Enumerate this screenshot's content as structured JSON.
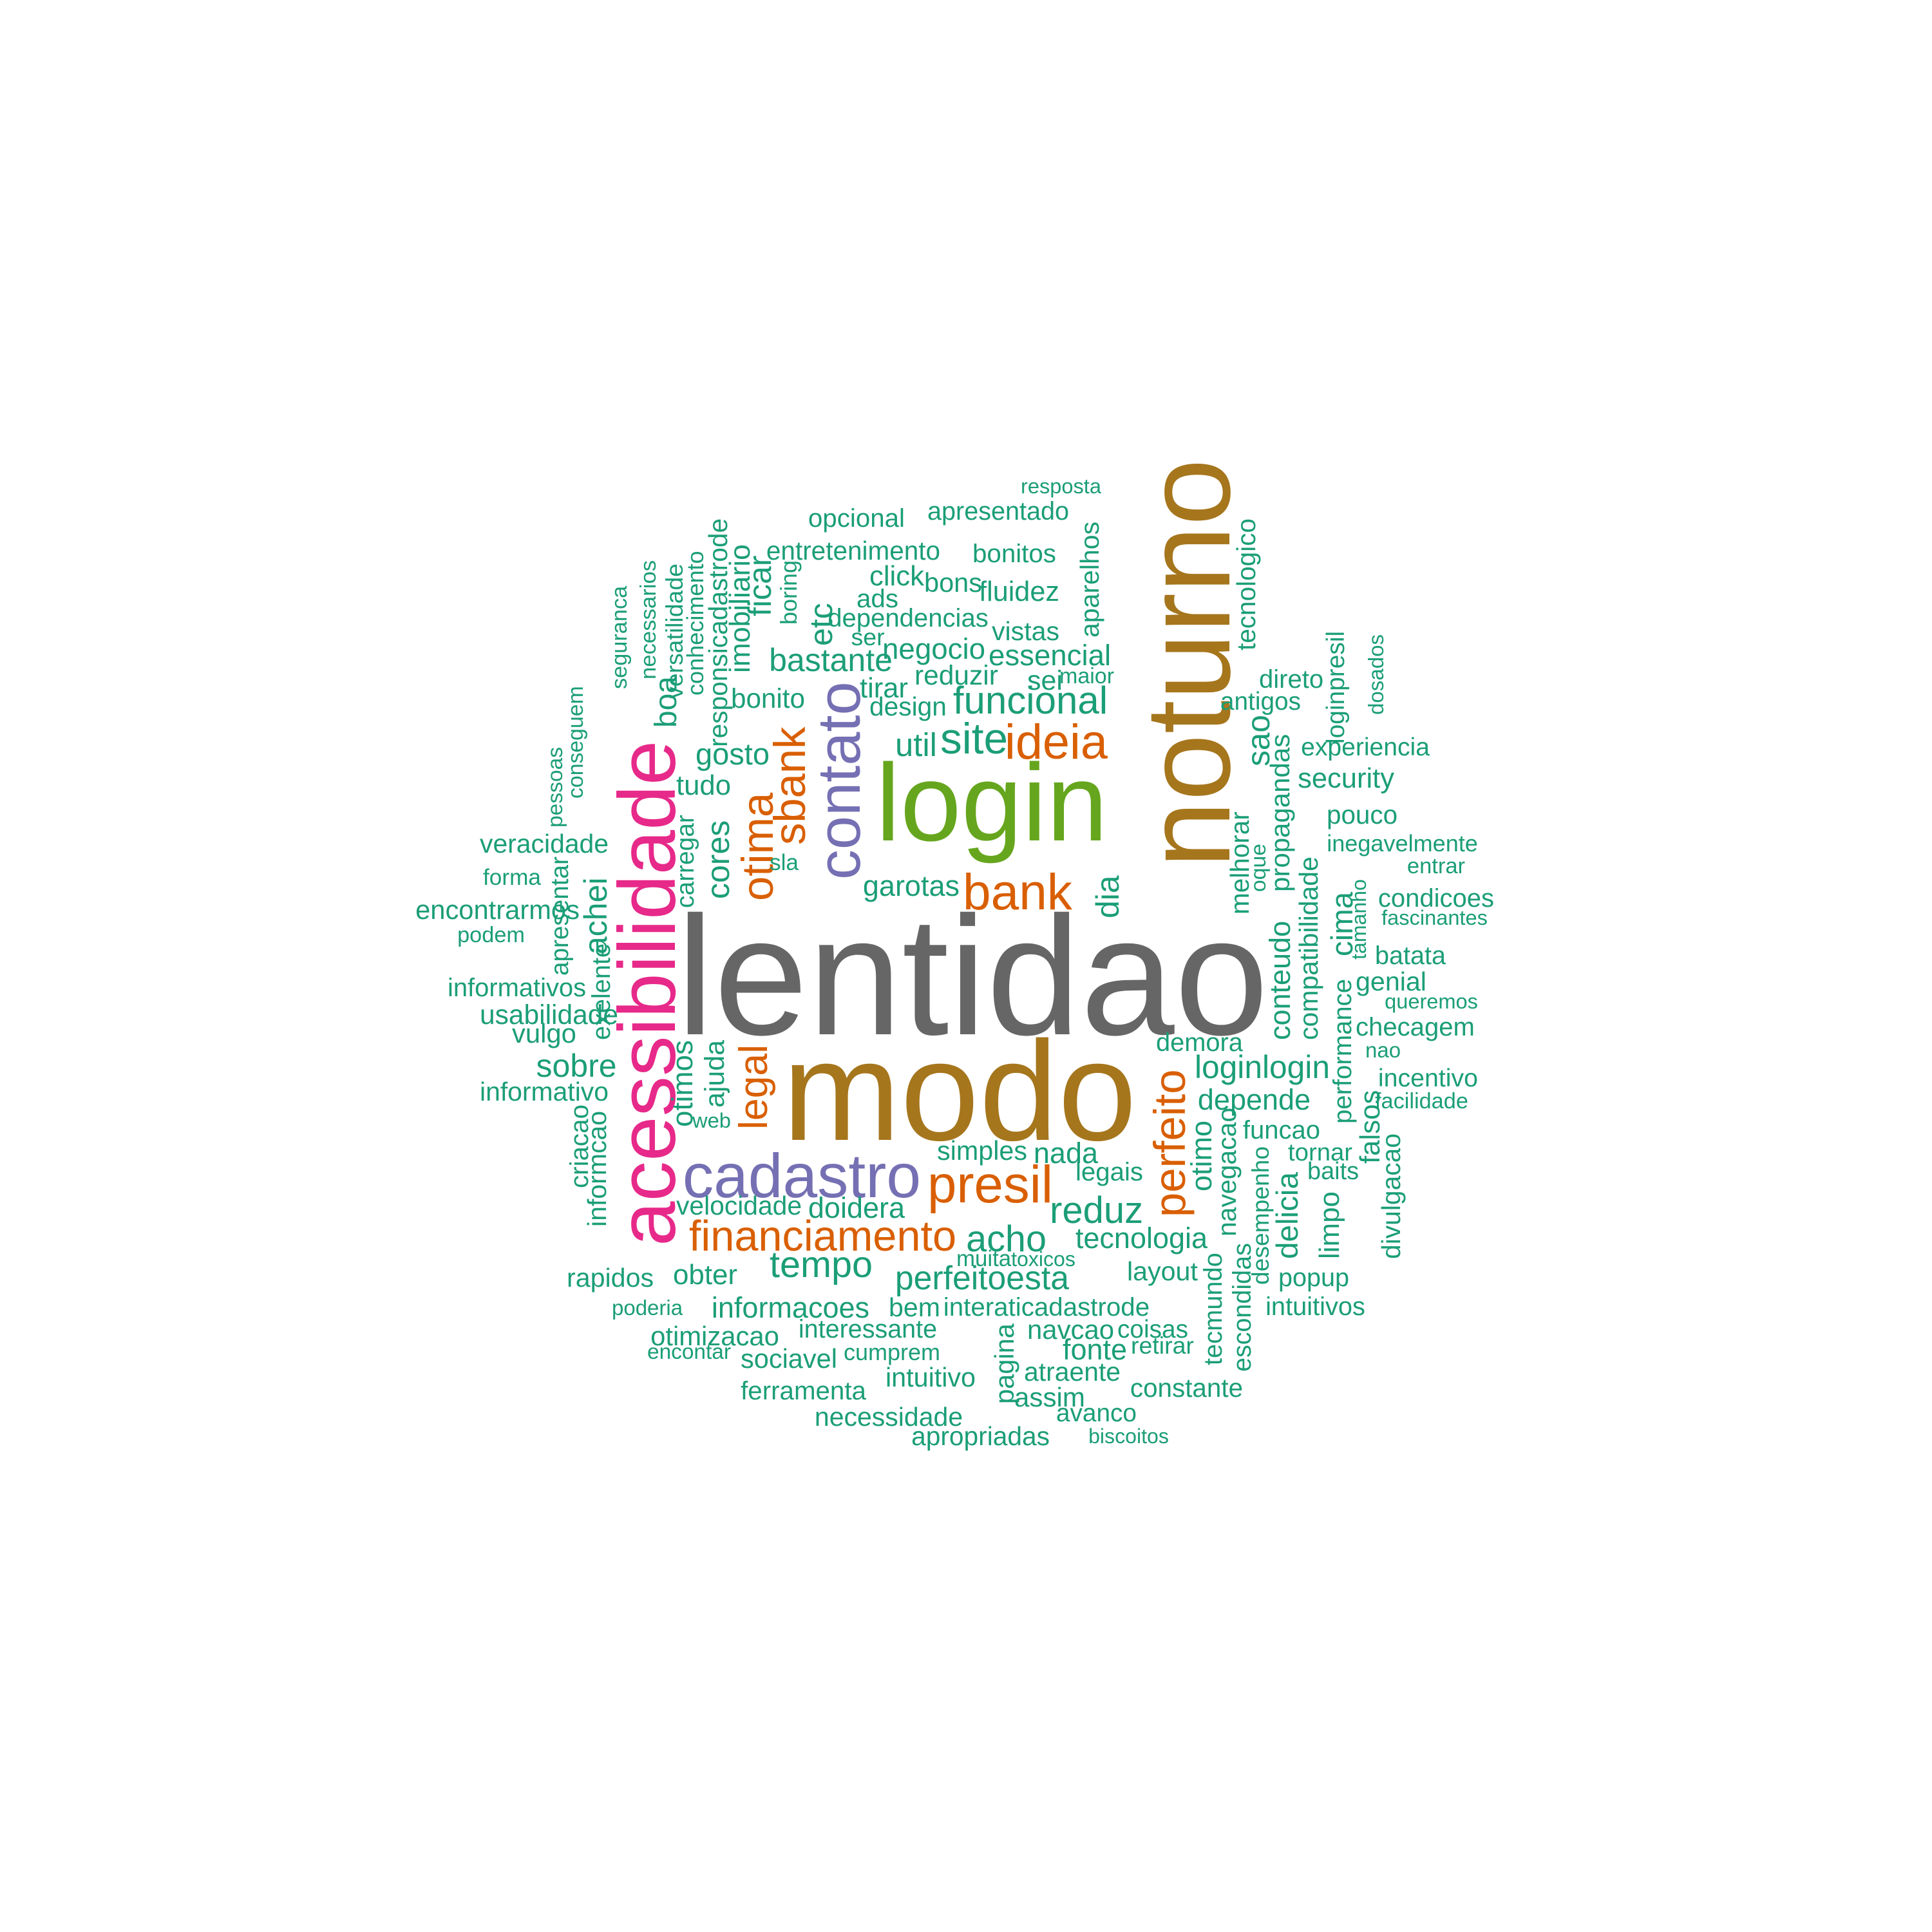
{
  "colors": {
    "gray": "#666666",
    "gold": "#A6761D",
    "green": "#66A61E",
    "pink": "#E7298A",
    "purple": "#7570B3",
    "orange": "#D95F02",
    "teal": "#1B9E77"
  },
  "words": [
    {
      "text": "lentidao",
      "color": "gray"
    },
    {
      "text": "modo",
      "color": "gold"
    },
    {
      "text": "noturno",
      "color": "gold"
    },
    {
      "text": "login",
      "color": "green"
    },
    {
      "text": "acessibilidade",
      "color": "pink"
    },
    {
      "text": "contato",
      "color": "purple"
    },
    {
      "text": "cadastro",
      "color": "purple"
    },
    {
      "text": "presil",
      "color": "orange"
    },
    {
      "text": "bank",
      "color": "orange"
    },
    {
      "text": "ideia",
      "color": "orange"
    },
    {
      "text": "sbank",
      "color": "orange"
    },
    {
      "text": "otima",
      "color": "orange"
    },
    {
      "text": "perfeito",
      "color": "orange"
    },
    {
      "text": "legal",
      "color": "orange"
    },
    {
      "text": "financiamento",
      "color": "orange"
    },
    {
      "text": "site",
      "color": "teal"
    },
    {
      "text": "funcional",
      "color": "teal"
    },
    {
      "text": "reduz",
      "color": "teal"
    },
    {
      "text": "acho",
      "color": "teal"
    },
    {
      "text": "tempo",
      "color": "teal"
    },
    {
      "text": "perfeitoesta",
      "color": "teal"
    },
    {
      "text": "tecnologia",
      "color": "teal"
    },
    {
      "text": "loginlogin",
      "color": "teal"
    },
    {
      "text": "depende",
      "color": "teal"
    },
    {
      "text": "doidera",
      "color": "teal"
    },
    {
      "text": "informacoes",
      "color": "teal"
    },
    {
      "text": "essencial",
      "color": "teal"
    },
    {
      "text": "negocio",
      "color": "teal"
    },
    {
      "text": "util",
      "color": "teal"
    },
    {
      "text": "gosto",
      "color": "teal"
    },
    {
      "text": "garotas",
      "color": "teal"
    },
    {
      "text": "cores",
      "color": "teal"
    },
    {
      "text": "conteudo",
      "color": "teal"
    },
    {
      "text": "compatibilidade",
      "color": "teal"
    },
    {
      "text": "propagandas",
      "color": "teal"
    },
    {
      "text": "veracidade",
      "color": "teal"
    },
    {
      "text": "informativos",
      "color": "teal"
    },
    {
      "text": "informativo",
      "color": "teal"
    },
    {
      "text": "opcional",
      "color": "teal"
    },
    {
      "text": "apresentado",
      "color": "teal"
    },
    {
      "text": "resposta",
      "color": "teal"
    },
    {
      "text": "entretenimento",
      "color": "teal"
    },
    {
      "text": "bonitos",
      "color": "teal"
    },
    {
      "text": "click",
      "color": "teal"
    },
    {
      "text": "bons",
      "color": "teal"
    },
    {
      "text": "fluidez",
      "color": "teal"
    },
    {
      "text": "ads",
      "color": "teal"
    },
    {
      "text": "dependencias",
      "color": "teal"
    },
    {
      "text": "ser",
      "color": "teal"
    },
    {
      "text": "vistas",
      "color": "teal"
    },
    {
      "text": "bastante",
      "color": "teal"
    },
    {
      "text": "reduzir",
      "color": "teal"
    },
    {
      "text": "sei",
      "color": "teal"
    },
    {
      "text": "maior",
      "color": "teal"
    },
    {
      "text": "tirar",
      "color": "teal"
    },
    {
      "text": "design",
      "color": "teal"
    },
    {
      "text": "bonito",
      "color": "teal"
    },
    {
      "text": "tudo",
      "color": "teal"
    },
    {
      "text": "carregar",
      "color": "teal"
    },
    {
      "text": "sla",
      "color": "teal"
    },
    {
      "text": "aparelhos",
      "color": "teal"
    },
    {
      "text": "etc",
      "color": "teal"
    },
    {
      "text": "boring",
      "color": "teal"
    },
    {
      "text": "ficar",
      "color": "teal"
    },
    {
      "text": "imobiliario",
      "color": "teal"
    },
    {
      "text": "responsicadastrode",
      "color": "teal"
    },
    {
      "text": "conhecimento",
      "color": "teal"
    },
    {
      "text": "versatilidade",
      "color": "teal"
    },
    {
      "text": "boa",
      "color": "teal"
    },
    {
      "text": "necessarios",
      "color": "teal"
    },
    {
      "text": "seguranca",
      "color": "teal"
    },
    {
      "text": "conseguem",
      "color": "teal"
    },
    {
      "text": "pessoas",
      "color": "teal"
    },
    {
      "text": "forma",
      "color": "teal"
    },
    {
      "text": "encontrarmos",
      "color": "teal"
    },
    {
      "text": "podem",
      "color": "teal"
    },
    {
      "text": "apresentar",
      "color": "teal"
    },
    {
      "text": "achei",
      "color": "teal"
    },
    {
      "text": "exelente",
      "color": "teal"
    },
    {
      "text": "usabilidade",
      "color": "teal"
    },
    {
      "text": "vulgo",
      "color": "teal"
    },
    {
      "text": "sobre",
      "color": "teal"
    },
    {
      "text": "criacao",
      "color": "teal"
    },
    {
      "text": "informcao",
      "color": "teal"
    },
    {
      "text": "otimos",
      "color": "teal"
    },
    {
      "text": "ajuda",
      "color": "teal"
    },
    {
      "text": "web",
      "color": "teal"
    },
    {
      "text": "velocidade",
      "color": "teal"
    },
    {
      "text": "rapidos",
      "color": "teal"
    },
    {
      "text": "obter",
      "color": "teal"
    },
    {
      "text": "poderia",
      "color": "teal"
    },
    {
      "text": "otimizacao",
      "color": "teal"
    },
    {
      "text": "encontar",
      "color": "teal"
    },
    {
      "text": "interessante",
      "color": "teal"
    },
    {
      "text": "sociavel",
      "color": "teal"
    },
    {
      "text": "cumprem",
      "color": "teal"
    },
    {
      "text": "ferramenta",
      "color": "teal"
    },
    {
      "text": "intuitivo",
      "color": "teal"
    },
    {
      "text": "necessidade",
      "color": "teal"
    },
    {
      "text": "apropriadas",
      "color": "teal"
    },
    {
      "text": "bem",
      "color": "teal"
    },
    {
      "text": "interaticadastrode",
      "color": "teal"
    },
    {
      "text": "muita",
      "color": "teal"
    },
    {
      "text": "toxicos",
      "color": "teal"
    },
    {
      "text": "pagina",
      "color": "teal"
    },
    {
      "text": "navcao",
      "color": "teal"
    },
    {
      "text": "coisas",
      "color": "teal"
    },
    {
      "text": "fonte",
      "color": "teal"
    },
    {
      "text": "retirar",
      "color": "teal"
    },
    {
      "text": "atraente",
      "color": "teal"
    },
    {
      "text": "assim",
      "color": "teal"
    },
    {
      "text": "avanco",
      "color": "teal"
    },
    {
      "text": "constante",
      "color": "teal"
    },
    {
      "text": "biscoitos",
      "color": "teal"
    },
    {
      "text": "simples",
      "color": "teal"
    },
    {
      "text": "nada",
      "color": "teal"
    },
    {
      "text": "legais",
      "color": "teal"
    },
    {
      "text": "layout",
      "color": "teal"
    },
    {
      "text": "demora",
      "color": "teal"
    },
    {
      "text": "otimo",
      "color": "teal"
    },
    {
      "text": "navegacao",
      "color": "teal"
    },
    {
      "text": "desempenho",
      "color": "teal"
    },
    {
      "text": "delicia",
      "color": "teal"
    },
    {
      "text": "funcao",
      "color": "teal"
    },
    {
      "text": "tornar",
      "color": "teal"
    },
    {
      "text": "baits",
      "color": "teal"
    },
    {
      "text": "limpo",
      "color": "teal"
    },
    {
      "text": "popup",
      "color": "teal"
    },
    {
      "text": "intuitivos",
      "color": "teal"
    },
    {
      "text": "tecmundo",
      "color": "teal"
    },
    {
      "text": "escondidas",
      "color": "teal"
    },
    {
      "text": "tecnologico",
      "color": "teal"
    },
    {
      "text": "direto",
      "color": "teal"
    },
    {
      "text": "antigos",
      "color": "teal"
    },
    {
      "text": "loginpresil",
      "color": "teal"
    },
    {
      "text": "dosados",
      "color": "teal"
    },
    {
      "text": "sao",
      "color": "teal"
    },
    {
      "text": "experiencia",
      "color": "teal"
    },
    {
      "text": "security",
      "color": "teal"
    },
    {
      "text": "pouco",
      "color": "teal"
    },
    {
      "text": "melhorar",
      "color": "teal"
    },
    {
      "text": "oque",
      "color": "teal"
    },
    {
      "text": "inegavelmente",
      "color": "teal"
    },
    {
      "text": "entrar",
      "color": "teal"
    },
    {
      "text": "condicoes",
      "color": "teal"
    },
    {
      "text": "fascinantes",
      "color": "teal"
    },
    {
      "text": "cima",
      "color": "teal"
    },
    {
      "text": "tamanho",
      "color": "teal"
    },
    {
      "text": "batata",
      "color": "teal"
    },
    {
      "text": "genial",
      "color": "teal"
    },
    {
      "text": "queremos",
      "color": "teal"
    },
    {
      "text": "performance",
      "color": "teal"
    },
    {
      "text": "checagem",
      "color": "teal"
    },
    {
      "text": "nao",
      "color": "teal"
    },
    {
      "text": "incentivo",
      "color": "teal"
    },
    {
      "text": "facilidade",
      "color": "teal"
    },
    {
      "text": "falsos",
      "color": "teal"
    },
    {
      "text": "divulgacao",
      "color": "teal"
    },
    {
      "text": "dia",
      "color": "teal"
    }
  ]
}
